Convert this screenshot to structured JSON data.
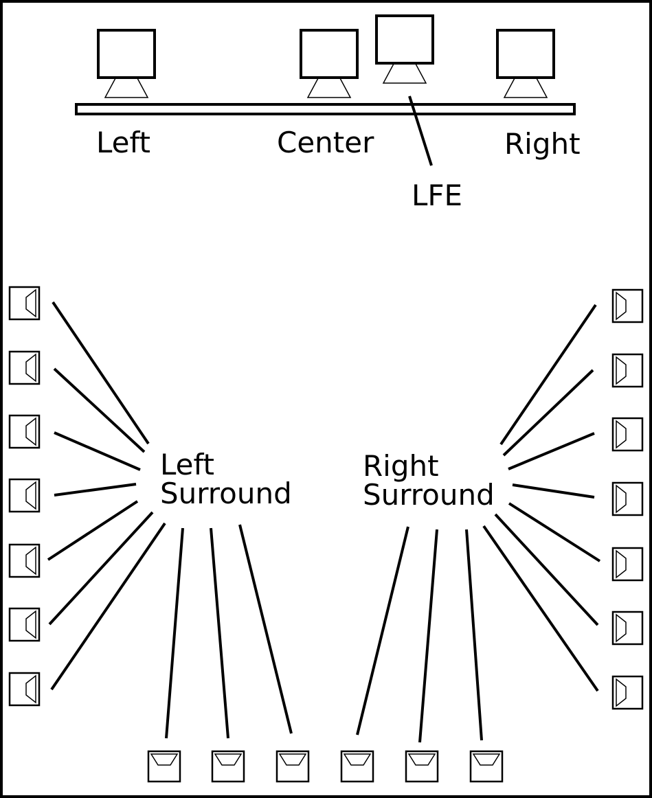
{
  "labels": {
    "left": "Left",
    "center": "Center",
    "right": "Right",
    "lfe": "LFE",
    "left_surround_line1": "Left",
    "left_surround_line2": "Surround",
    "right_surround_line1": "Right",
    "right_surround_line2": "Surround"
  },
  "counts": {
    "front_speakers": 4,
    "left_wall_surrounds": 7,
    "right_wall_surrounds": 7,
    "rear_wall_surrounds": 6
  },
  "colors": {
    "ink": "#000000",
    "background": "#ffffff"
  }
}
